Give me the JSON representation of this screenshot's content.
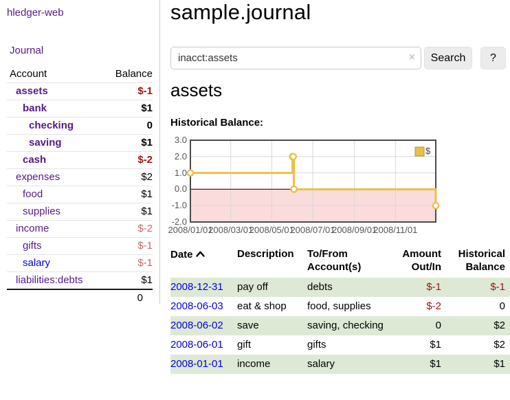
{
  "app": {
    "brand": "hledger-web"
  },
  "colors": {
    "link_purple": "#551a8b",
    "link_blue": "#0000e6",
    "negative": "#a01313",
    "negative_muted": "#c46a6a",
    "row_stripe_green": "#dde9d5",
    "series_gold": "#e8c04a",
    "negative_region_pink": "#fbdcdc",
    "zero_line_red": "#8f0000"
  },
  "sidebar": {
    "nav_journal": "Journal",
    "accounts": {
      "header_account": "Account",
      "header_balance": "Balance",
      "rows": [
        {
          "name": "assets",
          "indent": 1,
          "bold": true,
          "link_color": "purple",
          "balance": "$-1",
          "balance_tone": "negative"
        },
        {
          "name": "bank",
          "indent": 2,
          "bold": true,
          "link_color": "purple",
          "balance": "$1",
          "balance_tone": "default"
        },
        {
          "name": "checking",
          "indent": 3,
          "bold": true,
          "link_color": "purple",
          "balance": "0",
          "balance_tone": "default"
        },
        {
          "name": "saving",
          "indent": 3,
          "bold": true,
          "link_color": "purple",
          "balance": "$1",
          "balance_tone": "default"
        },
        {
          "name": "cash",
          "indent": 2,
          "bold": true,
          "link_color": "purple",
          "balance": "$-2",
          "balance_tone": "negative"
        },
        {
          "name": "expenses",
          "indent": 1,
          "bold": false,
          "link_color": "purple",
          "balance": "$2",
          "balance_tone": "default"
        },
        {
          "name": "food",
          "indent": 2,
          "bold": false,
          "link_color": "purple",
          "balance": "$1",
          "balance_tone": "default"
        },
        {
          "name": "supplies",
          "indent": 2,
          "bold": false,
          "link_color": "purple",
          "balance": "$1",
          "balance_tone": "default"
        },
        {
          "name": "income",
          "indent": 1,
          "bold": false,
          "link_color": "purple",
          "balance": "$-2",
          "balance_tone": "negative-muted"
        },
        {
          "name": "gifts",
          "indent": 2,
          "bold": false,
          "link_color": "purple",
          "balance": "$-1",
          "balance_tone": "negative-muted"
        },
        {
          "name": "salary",
          "indent": 2,
          "bold": false,
          "link_color": "blue",
          "balance": "$-1",
          "balance_tone": "negative-muted"
        },
        {
          "name": "liabilities:debts",
          "indent": 1,
          "bold": false,
          "link_color": "purple",
          "balance": "$1",
          "balance_tone": "default"
        }
      ],
      "total": "0"
    }
  },
  "main": {
    "title": "sample.journal",
    "search": {
      "value": "inacct:assets",
      "clear_icon": "×",
      "button": "Search",
      "help": "?"
    },
    "account_heading": "assets",
    "chart_label": "Historical Balance:"
  },
  "register": {
    "headers": {
      "date": "Date",
      "description": "Description",
      "accounts": "To/From Account(s)",
      "amount": "Amount Out/In",
      "balance": "Historical Balance"
    },
    "sort": "ascending",
    "rows": [
      {
        "date": "2008-12-31",
        "description": "pay off",
        "accounts": "debts",
        "amount": "$-1",
        "amount_tone": "negative",
        "balance": "$-1",
        "balance_tone": "negative"
      },
      {
        "date": "2008-06-03",
        "description": "eat & shop",
        "accounts": "food, supplies",
        "amount": "$-2",
        "amount_tone": "negative",
        "balance": "0",
        "balance_tone": "default"
      },
      {
        "date": "2008-06-02",
        "description": "save",
        "accounts": "saving, checking",
        "amount": "0",
        "amount_tone": "default",
        "balance": "$2",
        "balance_tone": "default"
      },
      {
        "date": "2008-06-01",
        "description": "gift",
        "accounts": "gifts",
        "amount": "$1",
        "amount_tone": "default",
        "balance": "$2",
        "balance_tone": "default"
      },
      {
        "date": "2008-01-01",
        "description": "income",
        "accounts": "salary",
        "amount": "$1",
        "amount_tone": "default",
        "balance": "$1",
        "balance_tone": "default"
      }
    ]
  },
  "chart_data": {
    "type": "line",
    "step": true,
    "title": "Historical Balance:",
    "legend": [
      {
        "label": "$",
        "color": "#e8c04a"
      }
    ],
    "legend_position": "top-right",
    "grid": true,
    "negative_region_shaded": true,
    "ylim": [
      -2,
      3
    ],
    "x_range": [
      "2008-01-01",
      "2008-12-31"
    ],
    "y_ticks": [
      {
        "value": 3,
        "label": "3.0"
      },
      {
        "value": 2,
        "label": "2.0"
      },
      {
        "value": 1,
        "label": "1.0"
      },
      {
        "value": 0,
        "label": "0.0"
      },
      {
        "value": -1,
        "label": "-1.0"
      },
      {
        "value": -2,
        "label": "-2.0"
      }
    ],
    "x_ticks": [
      {
        "date": "2008-01-01",
        "label": "2008/01/01"
      },
      {
        "date": "2008-03-01",
        "label": "2008/03/01"
      },
      {
        "date": "2008-05-01",
        "label": "2008/05/01"
      },
      {
        "date": "2008-07-01",
        "label": "2008/07/01"
      },
      {
        "date": "2008-09-01",
        "label": "2008/09/01"
      },
      {
        "date": "2008-11-01",
        "label": "2008/11/01"
      }
    ],
    "series": [
      {
        "name": "$",
        "color": "#e8c04a",
        "points": [
          [
            "2008-01-01",
            1
          ],
          [
            "2008-06-01",
            2
          ],
          [
            "2008-06-02",
            2
          ],
          [
            "2008-06-03",
            0
          ],
          [
            "2008-12-31",
            -1
          ]
        ]
      }
    ]
  }
}
